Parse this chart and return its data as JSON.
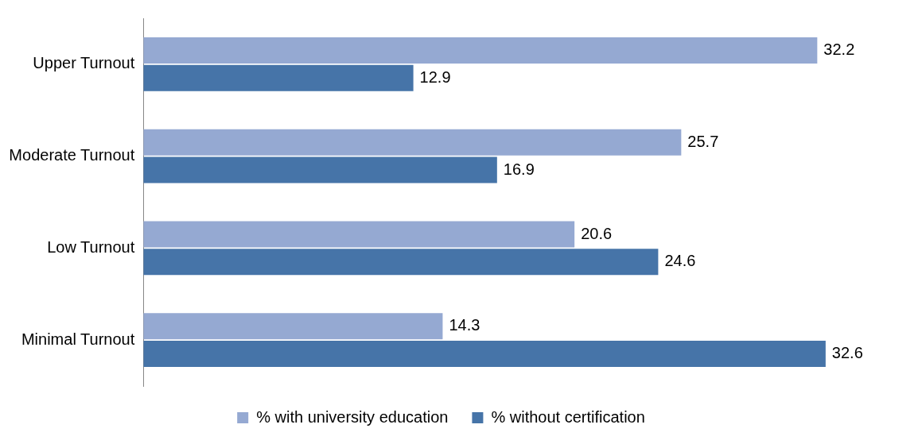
{
  "chart_data": {
    "type": "bar",
    "orientation": "horizontal",
    "categories": [
      "Upper Turnout",
      "Moderate Turnout",
      "Low Turnout",
      "Minimal Turnout"
    ],
    "series": [
      {
        "name": "% with university education",
        "color": "#95a9d2",
        "values": [
          32.2,
          25.7,
          20.6,
          14.3
        ]
      },
      {
        "name": "% without certification",
        "color": "#4674a8",
        "values": [
          12.9,
          16.9,
          24.6,
          32.6
        ]
      }
    ],
    "data_labels": true,
    "legend": "bottom"
  }
}
